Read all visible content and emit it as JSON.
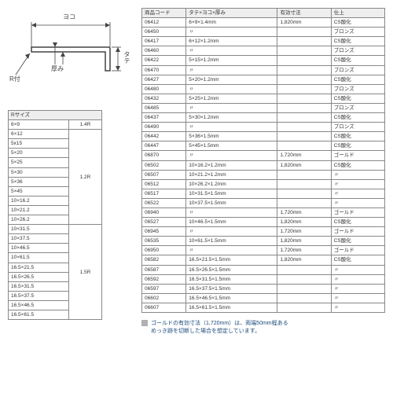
{
  "diagram": {
    "yoko": "ヨコ",
    "tate": "タテ",
    "r": "R付",
    "atsumi": "厚み"
  },
  "rTable": {
    "header": "Rサイズ",
    "groups": [
      {
        "r": "1.4R",
        "sizes": [
          "6×9"
        ]
      },
      {
        "r": "1.2R",
        "sizes": [
          "6×12",
          "5x15",
          "5×20",
          "5×25",
          "5×30",
          "5×36",
          "5×45",
          "10×16.2",
          "10×21.2",
          "10×26.2"
        ]
      },
      {
        "r": "1.5R",
        "sizes": [
          "10×31.5",
          "10×37.5",
          "10×46.5",
          "10×61.5",
          "16.5×21.5",
          "16.5×26.5",
          "16.5×31.5",
          "16.5×37.5",
          "16.5×46.5",
          "16.5×61.5"
        ]
      }
    ]
  },
  "specTable": {
    "headers": [
      "商品コード",
      "タテ×ヨコ×厚み",
      "有効寸法",
      "仕上"
    ],
    "rows": [
      [
        "06412",
        "6×9×1.4mm",
        "1,820mm",
        "CS酸化"
      ],
      [
        "06450",
        "〃",
        "",
        "ブロンズ"
      ],
      [
        "06417",
        "6×12×1.2mm",
        "",
        "CS酸化"
      ],
      [
        "06460",
        "〃",
        "",
        "ブロンズ"
      ],
      [
        "06422",
        "5×15×1.2mm",
        "",
        "CS酸化"
      ],
      [
        "06470",
        "〃",
        "",
        "ブロンズ"
      ],
      [
        "06427",
        "5×20×1.2mm",
        "",
        "CS酸化"
      ],
      [
        "06480",
        "〃",
        "",
        "ブロンズ"
      ],
      [
        "06432",
        "5×25×1.2mm",
        "",
        "CS酸化"
      ],
      [
        "06485",
        "〃",
        "",
        "ブロンズ"
      ],
      [
        "06437",
        "5×30×1.2mm",
        "",
        "CS酸化"
      ],
      [
        "06490",
        "〃",
        "",
        "ブロンズ"
      ],
      [
        "06442",
        "5×36×1.5mm",
        "",
        "CS酸化"
      ],
      [
        "06447",
        "5×45×1.5mm",
        "",
        "CS酸化"
      ],
      [
        "06870",
        "〃",
        "1,720mm",
        "ゴールド"
      ],
      [
        "06502",
        "10×16.2×1.2mm",
        "1,820mm",
        "CS酸化"
      ],
      [
        "06507",
        "10×21.2×1.2mm",
        "",
        "〃"
      ],
      [
        "06512",
        "10×26.2×1.2mm",
        "",
        "〃"
      ],
      [
        "06517",
        "10×31.5×1.5mm",
        "",
        "〃"
      ],
      [
        "06522",
        "10×37.5×1.5mm",
        "",
        "〃"
      ],
      [
        "06940",
        "〃",
        "1,720mm",
        "ゴールド"
      ],
      [
        "06527",
        "10×46.5×1.5mm",
        "1,820mm",
        "CS酸化"
      ],
      [
        "06945",
        "〃",
        "1,720mm",
        "ゴールド"
      ],
      [
        "06535",
        "10×61.5×1.5mm",
        "1,820mm",
        "CS酸化"
      ],
      [
        "06950",
        "〃",
        "1,720mm",
        "ゴールド"
      ],
      [
        "06582",
        "16.5×21.5×1.5mm",
        "1,820mm",
        "CS酸化"
      ],
      [
        "06587",
        "16.5×26.5×1.5mm",
        "",
        "〃"
      ],
      [
        "06592",
        "16.5×31.5×1.5mm",
        "",
        "〃"
      ],
      [
        "06597",
        "16.5×37.5×1.5mm",
        "",
        "〃"
      ],
      [
        "06602",
        "16.5×46.5×1.5mm",
        "",
        "〃"
      ],
      [
        "06607",
        "16.5×61.5×1.5mm",
        "",
        "〃"
      ]
    ]
  },
  "footnote": "ゴールドの有効寸法（1,720mm）は、両端50mm程ある\nめっき跡を切断した場合を想定しています。"
}
